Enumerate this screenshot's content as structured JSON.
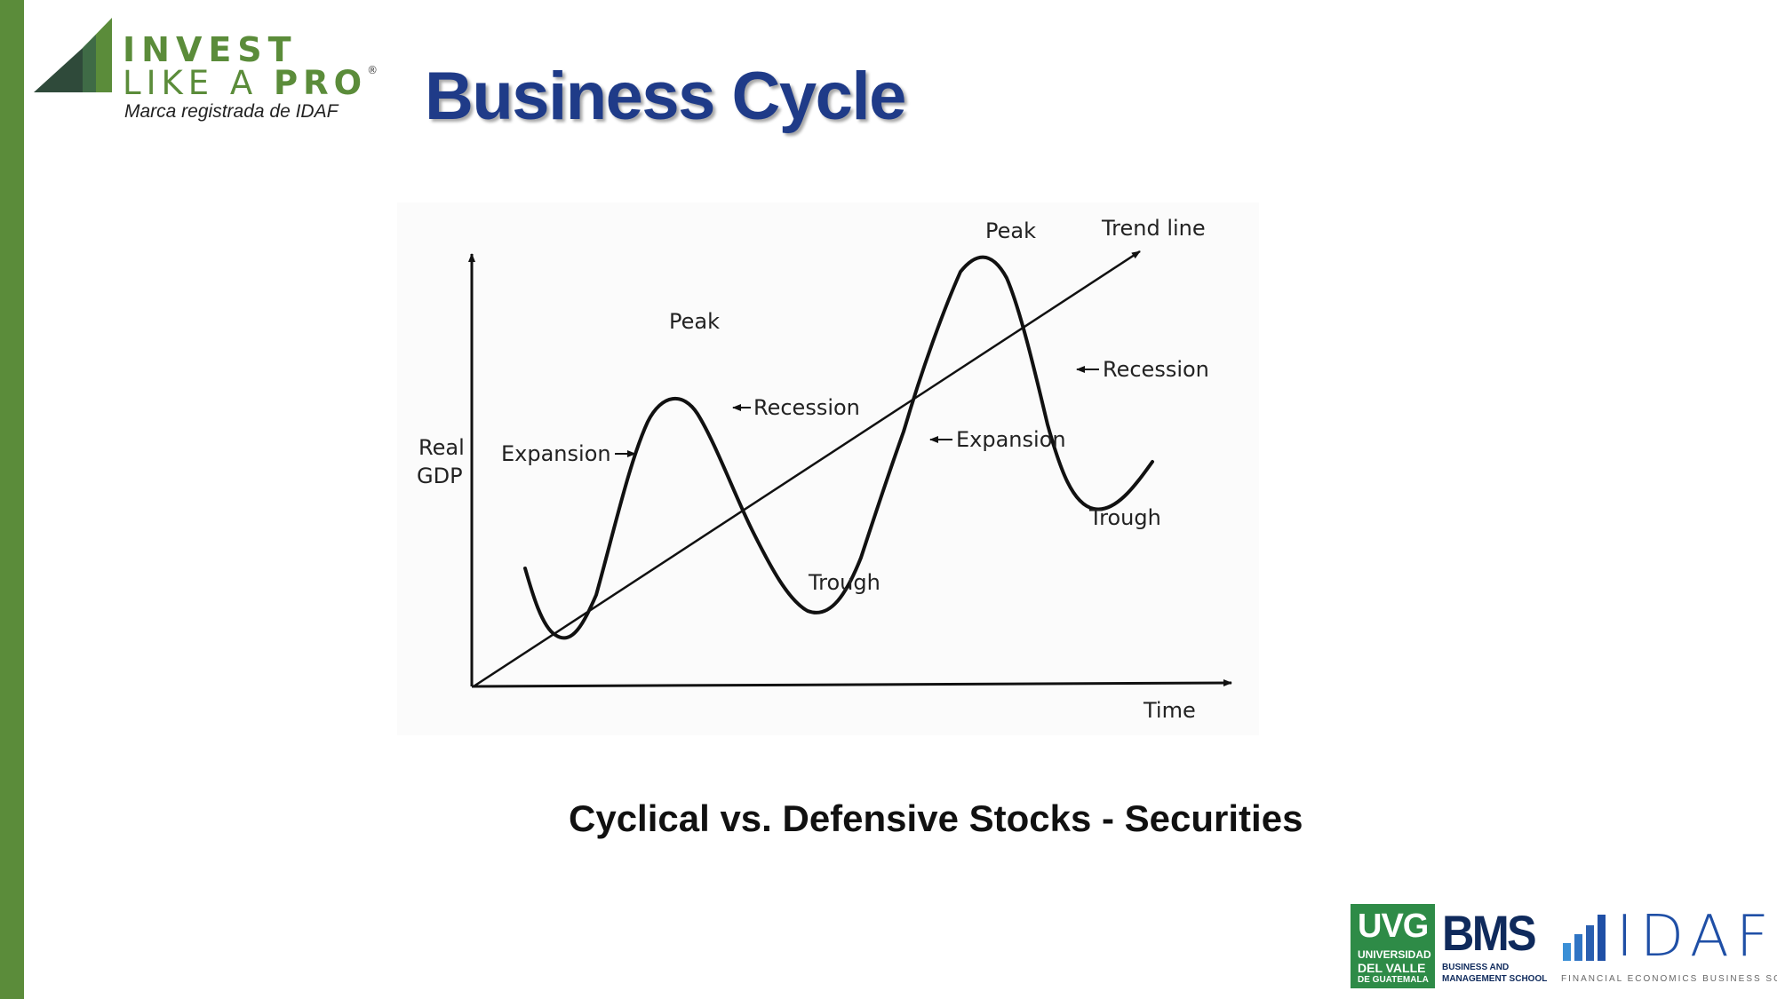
{
  "logo": {
    "line1": "INVEST",
    "line2_part1": "LIKE A ",
    "line2_part2": "PRO",
    "registered": "®",
    "tagline": "Marca registrada de IDAF"
  },
  "slide": {
    "title": "Business Cycle",
    "subtitle": "Cyclical vs. Defensive Stocks - Securities"
  },
  "diagram": {
    "y_axis_label_line1": "Real",
    "y_axis_label_line2": "GDP",
    "x_axis_label": "Time",
    "trend_label": "Trend line",
    "peak1_label": "Peak",
    "peak2_label": "Peak",
    "trough1_label": "Trough",
    "trough2_label": "Trough",
    "expansion1_label": "Expansion",
    "expansion2_label": "Expansion",
    "recession1_label": "Recession",
    "recession2_label": "Recession"
  },
  "footer": {
    "uvg": {
      "big": "UVG",
      "line1": "UNIVERSIDAD",
      "line2": "DEL VALLE",
      "line3": "DE GUATEMALA"
    },
    "bms": {
      "big": "BMS",
      "line1": "BUSINESS AND",
      "line2": "MANAGEMENT SCHOOL"
    },
    "idaf": {
      "word": "IDAF",
      "sub": "FINANCIAL ECONOMICS BUSINESS SCHOOL"
    }
  },
  "colors": {
    "accent_green": "#5b8c3a",
    "title_blue": "#1f3b88",
    "uvg_green": "#2e8b47",
    "bms_navy": "#0f2a5c",
    "idaf_blue": "#1f4fa6"
  }
}
